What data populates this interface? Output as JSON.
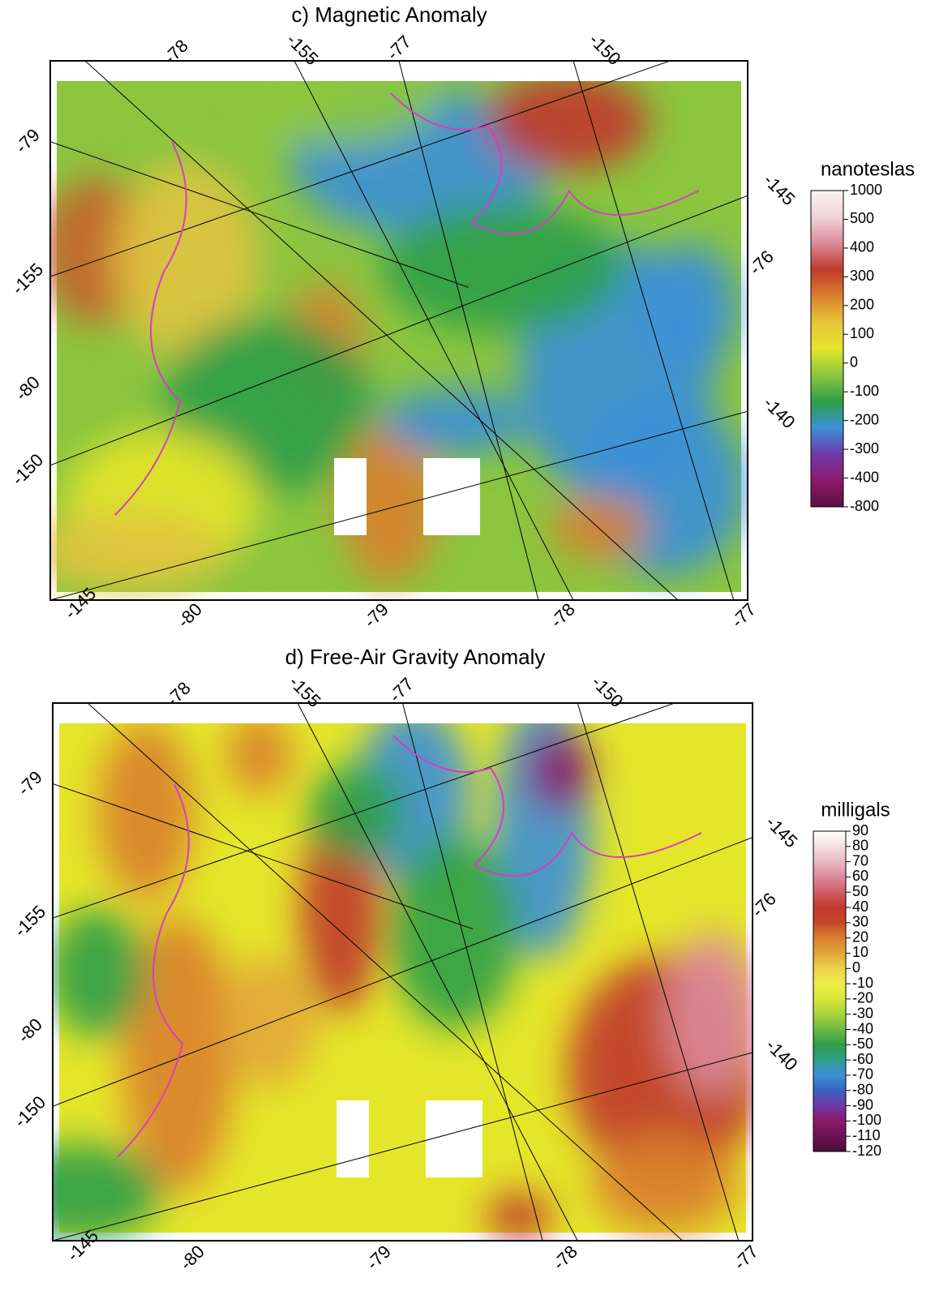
{
  "panels": [
    {
      "title": "c) Magnetic Anomaly",
      "colorbar": {
        "label": "nanoteslas",
        "ticks": [
          "1000",
          "500",
          "400",
          "300",
          "200",
          "100",
          "0",
          "-100",
          "-200",
          "-300",
          "-400",
          "-800"
        ]
      },
      "graticule_labels": [
        "-78",
        "-155",
        "-77",
        "-150",
        "-79",
        "-145",
        "-155",
        "-76",
        "-80",
        "-140",
        "-150",
        "-145",
        "-80",
        "-79",
        "-78",
        "-77"
      ]
    },
    {
      "title": "d) Free-Air Gravity Anomaly",
      "colorbar": {
        "label": "milligals",
        "ticks": [
          "90",
          "80",
          "70",
          "60",
          "50",
          "40",
          "30",
          "20",
          "10",
          "0",
          "-10",
          "-20",
          "-30",
          "-40",
          "-50",
          "-60",
          "-70",
          "-80",
          "-90",
          "-100",
          "-110",
          "-120"
        ]
      },
      "graticule_labels": [
        "-78",
        "-155",
        "-77",
        "-150",
        "-79",
        "-145",
        "-155",
        "-76",
        "-80",
        "-140",
        "-150",
        "-145",
        "-80",
        "-79",
        "-78",
        "-77"
      ]
    }
  ]
}
